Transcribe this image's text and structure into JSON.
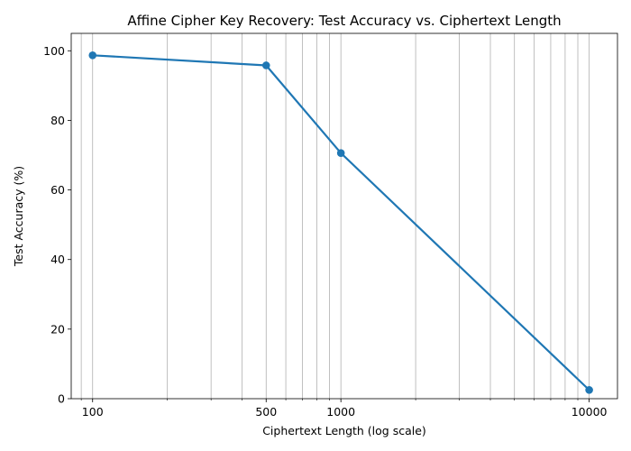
{
  "chart_data": {
    "type": "line",
    "title": "Affine Cipher Key Recovery: Test Accuracy vs. Ciphertext Length",
    "xlabel": "Ciphertext Length (log scale)",
    "ylabel": "Test Accuracy (%)",
    "x_scale": "log",
    "xlim": [
      82,
      13000
    ],
    "ylim": [
      0,
      105
    ],
    "x_ticks": [
      100,
      500,
      1000,
      10000
    ],
    "x_tick_labels": [
      "100",
      "500",
      "1000",
      "10000"
    ],
    "y_ticks": [
      0,
      20,
      40,
      60,
      80,
      100
    ],
    "y_tick_labels": [
      "0",
      "20",
      "40",
      "60",
      "80",
      "100"
    ],
    "grid": "vertical (major and minor x)",
    "series": [
      {
        "x": [
          100,
          500,
          1000,
          10000
        ],
        "values": [
          98.7,
          95.8,
          70.6,
          2.5
        ],
        "color": "#1f77b4",
        "marker": "circle"
      }
    ]
  }
}
